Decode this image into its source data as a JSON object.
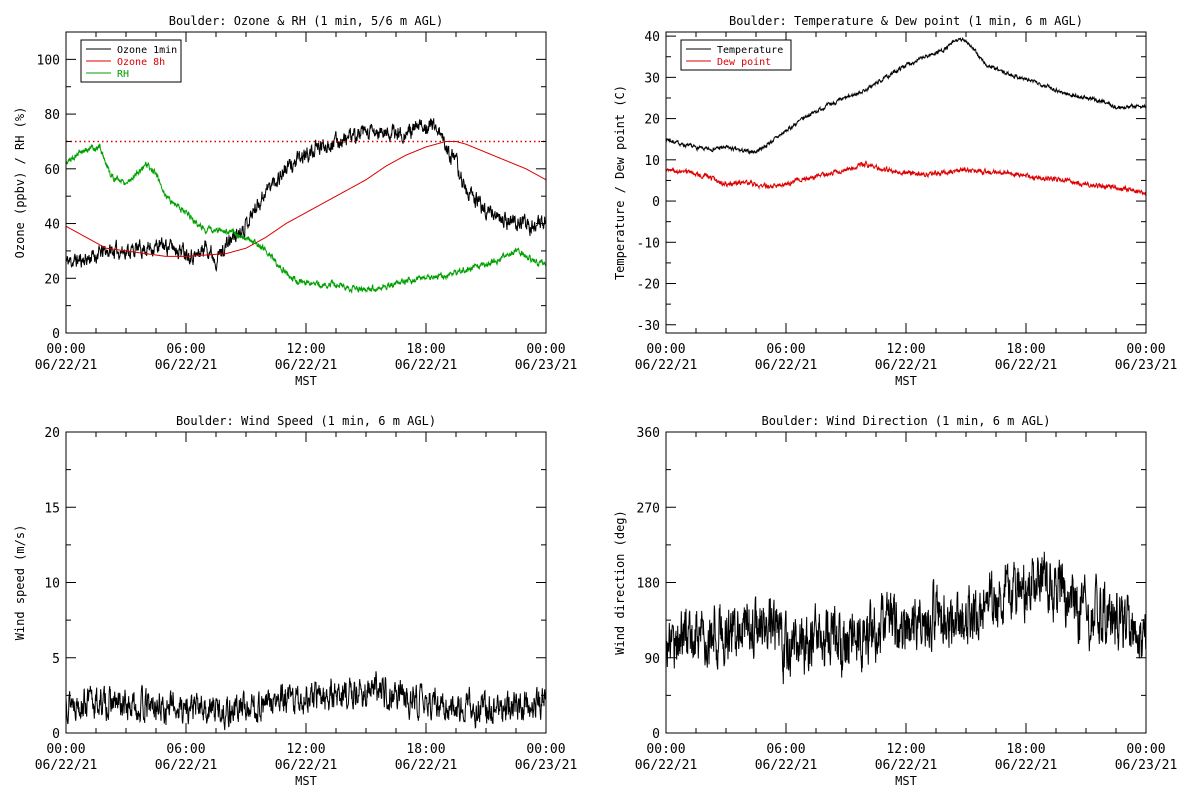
{
  "chart_data": [
    {
      "id": "ozone",
      "type": "line",
      "title": "Boulder: Ozone & RH (1 min, 5/6 m AGL)",
      "xlabel": "MST",
      "ylabel": "Ozone (ppbv) / RH (%)",
      "xlim": [
        0,
        24
      ],
      "ylim": [
        0,
        110
      ],
      "x_tick_values": [
        0,
        6,
        12,
        18,
        24
      ],
      "x_tick_labels": [
        [
          "00:00",
          "06/22/21"
        ],
        [
          "06:00",
          "06/22/21"
        ],
        [
          "12:00",
          "06/22/21"
        ],
        [
          "18:00",
          "06/22/21"
        ],
        [
          "00:00",
          "06/23/21"
        ]
      ],
      "y_ticks": [
        0,
        20,
        40,
        60,
        80,
        100
      ],
      "legend": "top-left",
      "reference_line": {
        "y": 70,
        "color": "#dd0000",
        "style": "dotted"
      },
      "series": [
        {
          "name": "Ozone 1min",
          "color": "#000000",
          "noise": 2.2,
          "seed": 11,
          "points": [
            [
              0,
              26
            ],
            [
              1,
              27
            ],
            [
              2,
              30
            ],
            [
              3,
              30
            ],
            [
              4,
              31
            ],
            [
              5,
              32
            ],
            [
              6,
              30
            ],
            [
              6.5,
              28
            ],
            [
              7,
              32
            ],
            [
              7.5,
              27
            ],
            [
              8,
              32
            ],
            [
              9,
              40
            ],
            [
              10,
              52
            ],
            [
              11,
              60
            ],
            [
              12,
              65
            ],
            [
              13,
              69
            ],
            [
              14,
              71
            ],
            [
              15,
              73
            ],
            [
              16,
              73
            ],
            [
              17,
              73
            ],
            [
              18,
              76
            ],
            [
              18.5,
              76
            ],
            [
              19,
              68
            ],
            [
              19.5,
              62
            ],
            [
              20,
              52
            ],
            [
              21,
              45
            ],
            [
              22,
              41
            ],
            [
              23,
              40
            ],
            [
              23.5,
              38
            ],
            [
              24,
              42
            ]
          ]
        },
        {
          "name": "Ozone 8h",
          "color": "#dd0000",
          "noise": 0,
          "seed": 2,
          "points": [
            [
              0,
              39
            ],
            [
              1,
              35
            ],
            [
              2,
              31
            ],
            [
              3,
              30
            ],
            [
              4,
              29
            ],
            [
              5,
              28
            ],
            [
              6,
              28
            ],
            [
              7,
              28.5
            ],
            [
              8,
              29
            ],
            [
              9,
              31
            ],
            [
              10,
              35
            ],
            [
              11,
              40
            ],
            [
              12,
              44
            ],
            [
              13,
              48
            ],
            [
              14,
              52
            ],
            [
              15,
              56
            ],
            [
              16,
              61
            ],
            [
              17,
              65
            ],
            [
              18,
              68
            ],
            [
              19,
              70
            ],
            [
              19.5,
              70
            ],
            [
              20,
              69
            ],
            [
              21,
              66
            ],
            [
              22,
              63
            ],
            [
              23,
              60
            ],
            [
              24,
              56
            ]
          ]
        },
        {
          "name": "RH",
          "color": "#00a000",
          "noise": 0.9,
          "seed": 5,
          "points": [
            [
              0,
              62
            ],
            [
              0.5,
              65
            ],
            [
              1,
              67
            ],
            [
              1.7,
              68
            ],
            [
              2,
              62
            ],
            [
              2.3,
              57
            ],
            [
              3,
              55
            ],
            [
              3.5,
              58
            ],
            [
              3.8,
              60
            ],
            [
              4,
              62
            ],
            [
              4.5,
              58
            ],
            [
              5,
              50
            ],
            [
              5.5,
              47
            ],
            [
              6,
              44
            ],
            [
              6.5,
              40
            ],
            [
              7,
              38
            ],
            [
              8,
              37
            ],
            [
              9,
              35
            ],
            [
              9.5,
              33
            ],
            [
              10,
              30
            ],
            [
              10.5,
              26
            ],
            [
              11,
              22
            ],
            [
              11.5,
              19
            ],
            [
              12,
              18
            ],
            [
              13,
              18
            ],
            [
              14,
              17
            ],
            [
              15,
              16
            ],
            [
              16,
              17
            ],
            [
              17,
              19
            ],
            [
              18,
              20
            ],
            [
              19,
              21
            ],
            [
              20,
              23
            ],
            [
              21,
              25
            ],
            [
              22,
              28
            ],
            [
              22.5,
              30
            ],
            [
              23,
              28
            ],
            [
              23.5,
              26
            ],
            [
              24,
              25
            ]
          ]
        }
      ]
    },
    {
      "id": "temp",
      "type": "line",
      "title": "Boulder: Temperature & Dew point (1 min, 6 m AGL)",
      "xlabel": "MST",
      "ylabel": "Temperature / Dew point (C)",
      "xlim": [
        0,
        24
      ],
      "ylim": [
        -32,
        41
      ],
      "x_tick_values": [
        0,
        6,
        12,
        18,
        24
      ],
      "x_tick_labels": [
        [
          "00:00",
          "06/22/21"
        ],
        [
          "06:00",
          "06/22/21"
        ],
        [
          "12:00",
          "06/22/21"
        ],
        [
          "18:00",
          "06/22/21"
        ],
        [
          "00:00",
          "06/23/21"
        ]
      ],
      "y_ticks": [
        -30,
        -20,
        -10,
        0,
        10,
        20,
        30,
        40
      ],
      "legend": "top-left",
      "series": [
        {
          "name": "Temperature",
          "color": "#000000",
          "noise": 0.35,
          "seed": 7,
          "points": [
            [
              0,
              15
            ],
            [
              1,
              13.5
            ],
            [
              2,
              12.5
            ],
            [
              3,
              13
            ],
            [
              4,
              12
            ],
            [
              4.5,
              12
            ],
            [
              5,
              13.5
            ],
            [
              6,
              17
            ],
            [
              7,
              20.5
            ],
            [
              8,
              23
            ],
            [
              9,
              25
            ],
            [
              10,
              27
            ],
            [
              11,
              30
            ],
            [
              12,
              33
            ],
            [
              13,
              35
            ],
            [
              14,
              37
            ],
            [
              14.5,
              39
            ],
            [
              15,
              39
            ],
            [
              15.5,
              36
            ],
            [
              16,
              33
            ],
            [
              17,
              31
            ],
            [
              18,
              29.5
            ],
            [
              19,
              28
            ],
            [
              20,
              26
            ],
            [
              21,
              25
            ],
            [
              22,
              24
            ],
            [
              22.5,
              22.5
            ],
            [
              23,
              23
            ],
            [
              24,
              23
            ]
          ]
        },
        {
          "name": "Dew point",
          "color": "#dd0000",
          "noise": 0.45,
          "seed": 9,
          "points": [
            [
              0,
              7.5
            ],
            [
              1,
              7
            ],
            [
              2,
              6
            ],
            [
              3,
              4
            ],
            [
              4,
              4.5
            ],
            [
              5,
              3.5
            ],
            [
              6,
              4
            ],
            [
              7,
              5.5
            ],
            [
              8,
              6.5
            ],
            [
              9,
              7.5
            ],
            [
              10,
              9
            ],
            [
              11,
              7.5
            ],
            [
              12,
              7
            ],
            [
              13,
              6.5
            ],
            [
              14,
              7
            ],
            [
              15,
              7.5
            ],
            [
              16,
              7
            ],
            [
              17,
              7
            ],
            [
              18,
              6
            ],
            [
              19,
              5.5
            ],
            [
              20,
              5
            ],
            [
              21,
              4
            ],
            [
              22,
              3.5
            ],
            [
              23,
              3
            ],
            [
              24,
              2
            ]
          ]
        }
      ]
    },
    {
      "id": "wspd",
      "type": "line",
      "title": "Boulder: Wind Speed (1 min, 6 m AGL)",
      "xlabel": "MST",
      "ylabel": "Wind speed (m/s)",
      "xlim": [
        0,
        24
      ],
      "ylim": [
        0,
        20
      ],
      "x_tick_values": [
        0,
        6,
        12,
        18,
        24
      ],
      "x_tick_labels": [
        [
          "00:00",
          "06/22/21"
        ],
        [
          "06:00",
          "06/22/21"
        ],
        [
          "12:00",
          "06/22/21"
        ],
        [
          "18:00",
          "06/22/21"
        ],
        [
          "00:00",
          "06/23/21"
        ]
      ],
      "y_ticks": [
        0,
        5,
        10,
        15,
        20
      ],
      "series": [
        {
          "name": "",
          "color": "#000000",
          "noise": 0.75,
          "seed": 13,
          "clamp_min": 0,
          "points": [
            [
              0,
              2.2
            ],
            [
              3,
              1.8
            ],
            [
              6,
              1.7
            ],
            [
              8,
              1.5
            ],
            [
              10,
              1.9
            ],
            [
              12,
              2.3
            ],
            [
              14,
              2.6
            ],
            [
              16,
              2.8
            ],
            [
              18,
              2
            ],
            [
              20,
              1.7
            ],
            [
              22,
              1.6
            ],
            [
              24,
              2.1
            ]
          ]
        }
      ]
    },
    {
      "id": "wdir",
      "type": "line",
      "title": "Boulder: Wind Direction (1 min, 6 m AGL)",
      "xlabel": "MST",
      "ylabel": "Wind direction (deg)",
      "xlim": [
        0,
        24
      ],
      "ylim": [
        0,
        360
      ],
      "x_tick_values": [
        0,
        6,
        12,
        18,
        24
      ],
      "x_tick_labels": [
        [
          "00:00",
          "06/22/21"
        ],
        [
          "06:00",
          "06/22/21"
        ],
        [
          "12:00",
          "06/22/21"
        ],
        [
          "18:00",
          "06/22/21"
        ],
        [
          "00:00",
          "06/23/21"
        ]
      ],
      "y_ticks": [
        0,
        90,
        180,
        270,
        360
      ],
      "series": [
        {
          "name": "",
          "color": "#000000",
          "noise": 28,
          "seed": 17,
          "points": [
            [
              0,
              115
            ],
            [
              2,
              118
            ],
            [
              3,
              125
            ],
            [
              4,
              128
            ],
            [
              5,
              120
            ],
            [
              6,
              105
            ],
            [
              7,
              100
            ],
            [
              8,
              110
            ],
            [
              9,
              100
            ],
            [
              10,
              120
            ],
            [
              11,
              125
            ],
            [
              12,
              130
            ],
            [
              13,
              140
            ],
            [
              14,
              145
            ],
            [
              15,
              130
            ],
            [
              16,
              160
            ],
            [
              17,
              170
            ],
            [
              18,
              175
            ],
            [
              19,
              180
            ],
            [
              20,
              160
            ],
            [
              21,
              145
            ],
            [
              22,
              140
            ],
            [
              23,
              135
            ],
            [
              24,
              125
            ]
          ]
        }
      ]
    }
  ]
}
